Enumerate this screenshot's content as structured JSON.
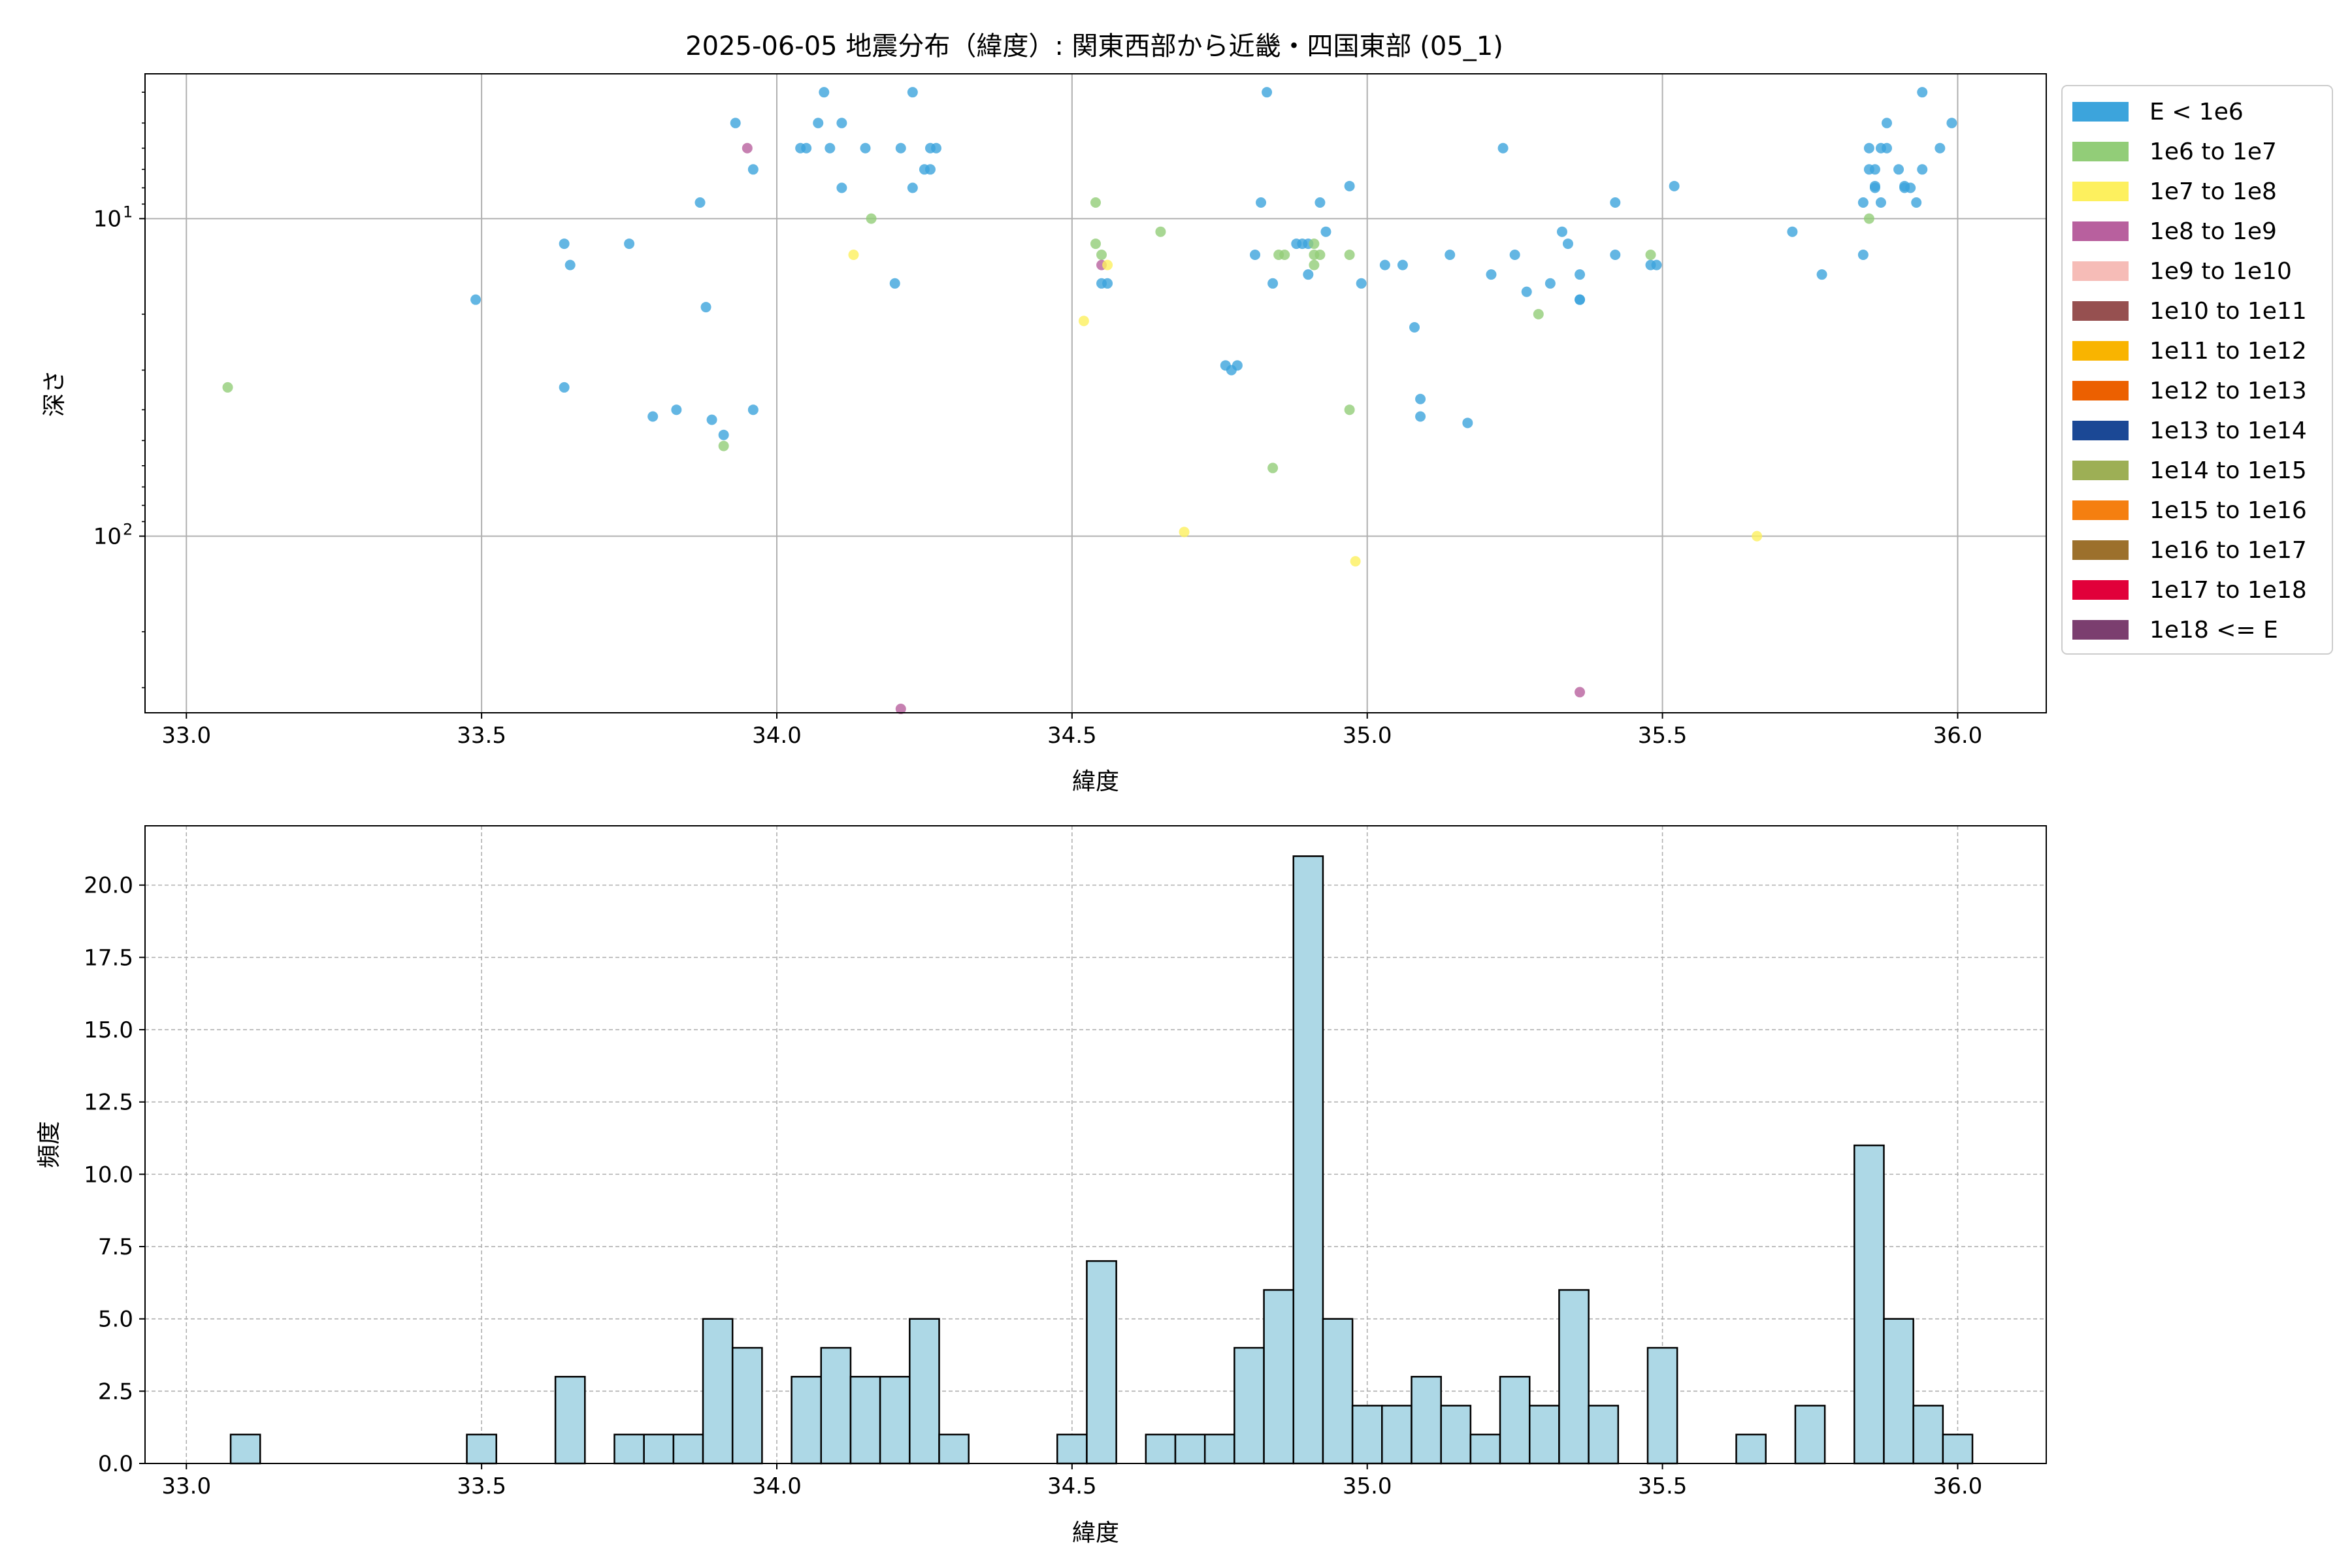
{
  "chart_data": [
    {
      "type": "scatter",
      "title": "2025-06-05 地震分布（緯度）: 関東西部から近畿・四国東部 (05_1)",
      "xlabel": "緯度",
      "ylabel": "深さ",
      "xlim": [
        32.93,
        36.15
      ],
      "ylim": [
        360,
        3.5
      ],
      "yscale": "log (inverted)",
      "xticks": [
        "33.0",
        "33.5",
        "34.0",
        "34.5",
        "35.0",
        "35.5",
        "36.0"
      ],
      "yticks": [
        {
          "value": 10,
          "label": "10",
          "exp": "1"
        },
        {
          "value": 100,
          "label": "10",
          "exp": "2"
        }
      ],
      "grid": true,
      "legend_position": "outside-right",
      "legend": [
        {
          "label": "E < 1e6",
          "color": "#3ca4dc"
        },
        {
          "label": "1e6 to 1e7",
          "color": "#92cd78"
        },
        {
          "label": "1e7 to 1e8",
          "color": "#fdf05e"
        },
        {
          "label": "1e8 to 1e9",
          "color": "#b8609e"
        },
        {
          "label": "1e9 to 1e10",
          "color": "#f6bcb7"
        },
        {
          "label": "1e10 to 1e11",
          "color": "#965050"
        },
        {
          "label": "1e11 to 1e12",
          "color": "#f9b400"
        },
        {
          "label": "1e12 to 1e13",
          "color": "#ec6000"
        },
        {
          "label": "1e13 to 1e14",
          "color": "#1b4895"
        },
        {
          "label": "1e14 to 1e15",
          "color": "#9daf55"
        },
        {
          "label": "1e15 to 1e16",
          "color": "#f57f10"
        },
        {
          "label": "1e16 to 1e17",
          "color": "#9c702c"
        },
        {
          "label": "1e17 to 1e18",
          "color": "#e1003a"
        },
        {
          "label": "1e18 <= E",
          "color": "#7b3e6f"
        }
      ],
      "points": [
        {
          "x": 33.07,
          "y": 34,
          "c": 1
        },
        {
          "x": 33.49,
          "y": 18,
          "c": 0
        },
        {
          "x": 33.64,
          "y": 34,
          "c": 0
        },
        {
          "x": 33.64,
          "y": 12,
          "c": 0
        },
        {
          "x": 33.65,
          "y": 14,
          "c": 0
        },
        {
          "x": 33.75,
          "y": 12,
          "c": 0
        },
        {
          "x": 33.79,
          "y": 42,
          "c": 0
        },
        {
          "x": 33.83,
          "y": 40,
          "c": 0
        },
        {
          "x": 33.87,
          "y": 8.9,
          "c": 0
        },
        {
          "x": 33.88,
          "y": 19,
          "c": 0
        },
        {
          "x": 33.89,
          "y": 43,
          "c": 0
        },
        {
          "x": 33.91,
          "y": 48,
          "c": 0
        },
        {
          "x": 33.91,
          "y": 52,
          "c": 1
        },
        {
          "x": 33.93,
          "y": 5.0,
          "c": 0
        },
        {
          "x": 33.95,
          "y": 6.0,
          "c": 3
        },
        {
          "x": 33.96,
          "y": 40,
          "c": 0
        },
        {
          "x": 33.96,
          "y": 7.0,
          "c": 0
        },
        {
          "x": 34.04,
          "y": 6.0,
          "c": 0
        },
        {
          "x": 34.05,
          "y": 6.0,
          "c": 0
        },
        {
          "x": 34.07,
          "y": 5.0,
          "c": 0
        },
        {
          "x": 34.08,
          "y": 4.0,
          "c": 0
        },
        {
          "x": 34.09,
          "y": 6.0,
          "c": 0
        },
        {
          "x": 34.11,
          "y": 5.0,
          "c": 0
        },
        {
          "x": 34.11,
          "y": 8.0,
          "c": 0
        },
        {
          "x": 34.13,
          "y": 13,
          "c": 2
        },
        {
          "x": 34.15,
          "y": 6.0,
          "c": 0
        },
        {
          "x": 34.16,
          "y": 10,
          "c": 1
        },
        {
          "x": 34.2,
          "y": 16,
          "c": 0
        },
        {
          "x": 34.21,
          "y": 6.0,
          "c": 0
        },
        {
          "x": 34.21,
          "y": 350,
          "c": 3
        },
        {
          "x": 34.23,
          "y": 8.0,
          "c": 0
        },
        {
          "x": 34.23,
          "y": 4.0,
          "c": 0
        },
        {
          "x": 34.25,
          "y": 7.0,
          "c": 0
        },
        {
          "x": 34.26,
          "y": 6.0,
          "c": 0
        },
        {
          "x": 34.26,
          "y": 7.0,
          "c": 0
        },
        {
          "x": 34.27,
          "y": 6.0,
          "c": 0
        },
        {
          "x": 34.52,
          "y": 21,
          "c": 2
        },
        {
          "x": 34.54,
          "y": 12,
          "c": 1
        },
        {
          "x": 34.54,
          "y": 8.9,
          "c": 1
        },
        {
          "x": 34.55,
          "y": 13,
          "c": 1
        },
        {
          "x": 34.55,
          "y": 14,
          "c": 3
        },
        {
          "x": 34.55,
          "y": 16,
          "c": 0
        },
        {
          "x": 34.56,
          "y": 14,
          "c": 2
        },
        {
          "x": 34.56,
          "y": 16,
          "c": 0
        },
        {
          "x": 34.65,
          "y": 11,
          "c": 1
        },
        {
          "x": 34.69,
          "y": 97,
          "c": 2
        },
        {
          "x": 34.76,
          "y": 29,
          "c": 0
        },
        {
          "x": 34.77,
          "y": 30,
          "c": 0
        },
        {
          "x": 34.78,
          "y": 29,
          "c": 0
        },
        {
          "x": 34.81,
          "y": 13,
          "c": 0
        },
        {
          "x": 34.82,
          "y": 8.9,
          "c": 0
        },
        {
          "x": 34.83,
          "y": 4.0,
          "c": 0
        },
        {
          "x": 34.84,
          "y": 16,
          "c": 0
        },
        {
          "x": 34.84,
          "y": 61,
          "c": 1
        },
        {
          "x": 34.85,
          "y": 13,
          "c": 1
        },
        {
          "x": 34.86,
          "y": 13,
          "c": 1
        },
        {
          "x": 34.88,
          "y": 12,
          "c": 0
        },
        {
          "x": 34.89,
          "y": 12,
          "c": 0
        },
        {
          "x": 34.9,
          "y": 12,
          "c": 0
        },
        {
          "x": 34.9,
          "y": 15,
          "c": 0
        },
        {
          "x": 34.91,
          "y": 12,
          "c": 1
        },
        {
          "x": 34.91,
          "y": 13,
          "c": 1
        },
        {
          "x": 34.91,
          "y": 14,
          "c": 1
        },
        {
          "x": 34.92,
          "y": 13,
          "c": 1
        },
        {
          "x": 34.92,
          "y": 8.9,
          "c": 0
        },
        {
          "x": 34.93,
          "y": 11,
          "c": 0
        },
        {
          "x": 34.97,
          "y": 13,
          "c": 1
        },
        {
          "x": 34.97,
          "y": 40,
          "c": 1
        },
        {
          "x": 34.97,
          "y": 7.9,
          "c": 0
        },
        {
          "x": 34.98,
          "y": 120,
          "c": 2
        },
        {
          "x": 34.99,
          "y": 16,
          "c": 0
        },
        {
          "x": 35.03,
          "y": 14,
          "c": 0
        },
        {
          "x": 35.06,
          "y": 14,
          "c": 0
        },
        {
          "x": 35.08,
          "y": 22,
          "c": 0
        },
        {
          "x": 35.09,
          "y": 37,
          "c": 0
        },
        {
          "x": 35.09,
          "y": 42,
          "c": 0
        },
        {
          "x": 35.14,
          "y": 13,
          "c": 0
        },
        {
          "x": 35.17,
          "y": 44,
          "c": 0
        },
        {
          "x": 35.21,
          "y": 15,
          "c": 0
        },
        {
          "x": 35.23,
          "y": 6.0,
          "c": 0
        },
        {
          "x": 35.25,
          "y": 13,
          "c": 0
        },
        {
          "x": 35.27,
          "y": 17,
          "c": 0
        },
        {
          "x": 35.29,
          "y": 20,
          "c": 1
        },
        {
          "x": 35.31,
          "y": 16,
          "c": 0
        },
        {
          "x": 35.33,
          "y": 11,
          "c": 0
        },
        {
          "x": 35.34,
          "y": 12,
          "c": 0
        },
        {
          "x": 35.36,
          "y": 15,
          "c": 0
        },
        {
          "x": 35.36,
          "y": 18,
          "c": 0
        },
        {
          "x": 35.36,
          "y": 18,
          "c": 0
        },
        {
          "x": 35.36,
          "y": 310,
          "c": 3
        },
        {
          "x": 35.42,
          "y": 8.9,
          "c": 0
        },
        {
          "x": 35.42,
          "y": 13,
          "c": 0
        },
        {
          "x": 35.48,
          "y": 14,
          "c": 0
        },
        {
          "x": 35.48,
          "y": 13,
          "c": 1
        },
        {
          "x": 35.49,
          "y": 14,
          "c": 0
        },
        {
          "x": 35.52,
          "y": 7.9,
          "c": 0
        },
        {
          "x": 35.66,
          "y": 100,
          "c": 2
        },
        {
          "x": 35.72,
          "y": 11,
          "c": 0
        },
        {
          "x": 35.77,
          "y": 15,
          "c": 0
        },
        {
          "x": 35.84,
          "y": 13,
          "c": 0
        },
        {
          "x": 35.84,
          "y": 8.9,
          "c": 0
        },
        {
          "x": 35.85,
          "y": 10,
          "c": 1
        },
        {
          "x": 35.85,
          "y": 6.0,
          "c": 0
        },
        {
          "x": 35.85,
          "y": 7.0,
          "c": 0
        },
        {
          "x": 35.86,
          "y": 7.0,
          "c": 0
        },
        {
          "x": 35.86,
          "y": 7.9,
          "c": 0
        },
        {
          "x": 35.86,
          "y": 8.0,
          "c": 0
        },
        {
          "x": 35.87,
          "y": 8.9,
          "c": 0
        },
        {
          "x": 35.87,
          "y": 6.0,
          "c": 0
        },
        {
          "x": 35.88,
          "y": 5.0,
          "c": 0
        },
        {
          "x": 35.88,
          "y": 6.0,
          "c": 0
        },
        {
          "x": 35.9,
          "y": 7.0,
          "c": 0
        },
        {
          "x": 35.91,
          "y": 7.9,
          "c": 0
        },
        {
          "x": 35.91,
          "y": 8.0,
          "c": 0
        },
        {
          "x": 35.92,
          "y": 8.0,
          "c": 0
        },
        {
          "x": 35.93,
          "y": 8.9,
          "c": 0
        },
        {
          "x": 35.94,
          "y": 4.0,
          "c": 0
        },
        {
          "x": 35.94,
          "y": 7.0,
          "c": 0
        },
        {
          "x": 35.97,
          "y": 6.0,
          "c": 0
        },
        {
          "x": 35.99,
          "y": 5.0,
          "c": 0
        }
      ]
    },
    {
      "type": "bar",
      "title": "",
      "xlabel": "緯度",
      "ylabel": "頻度",
      "xlim": [
        32.93,
        36.15
      ],
      "ylim": [
        0,
        22.05
      ],
      "xticks": [
        "33.0",
        "33.5",
        "34.0",
        "34.5",
        "35.0",
        "35.5",
        "36.0"
      ],
      "yticks": [
        "0.0",
        "2.5",
        "5.0",
        "7.5",
        "10.0",
        "12.5",
        "15.0",
        "17.5",
        "20.0"
      ],
      "grid": "dashed",
      "bar_color": "#add8e6",
      "bin_width": 0.05,
      "bins": [
        {
          "start": 33.075,
          "count": 1
        },
        {
          "start": 33.475,
          "count": 1
        },
        {
          "start": 33.625,
          "count": 3
        },
        {
          "start": 33.725,
          "count": 1
        },
        {
          "start": 33.775,
          "count": 1
        },
        {
          "start": 33.825,
          "count": 1
        },
        {
          "start": 33.875,
          "count": 5
        },
        {
          "start": 33.925,
          "count": 4
        },
        {
          "start": 34.025,
          "count": 3
        },
        {
          "start": 34.075,
          "count": 4
        },
        {
          "start": 34.125,
          "count": 3
        },
        {
          "start": 34.175,
          "count": 3
        },
        {
          "start": 34.225,
          "count": 5
        },
        {
          "start": 34.275,
          "count": 1
        },
        {
          "start": 34.475,
          "count": 1
        },
        {
          "start": 34.525,
          "count": 7
        },
        {
          "start": 34.625,
          "count": 1
        },
        {
          "start": 34.675,
          "count": 1
        },
        {
          "start": 34.725,
          "count": 1
        },
        {
          "start": 34.775,
          "count": 4
        },
        {
          "start": 34.825,
          "count": 6
        },
        {
          "start": 34.875,
          "count": 21
        },
        {
          "start": 34.925,
          "count": 5
        },
        {
          "start": 34.975,
          "count": 2
        },
        {
          "start": 35.025,
          "count": 2
        },
        {
          "start": 35.075,
          "count": 3
        },
        {
          "start": 35.125,
          "count": 2
        },
        {
          "start": 35.175,
          "count": 1
        },
        {
          "start": 35.225,
          "count": 3
        },
        {
          "start": 35.275,
          "count": 2
        },
        {
          "start": 35.325,
          "count": 6
        },
        {
          "start": 35.375,
          "count": 2
        },
        {
          "start": 35.475,
          "count": 4
        },
        {
          "start": 35.625,
          "count": 1
        },
        {
          "start": 35.725,
          "count": 2
        },
        {
          "start": 35.825,
          "count": 11
        },
        {
          "start": 35.875,
          "count": 5
        },
        {
          "start": 35.925,
          "count": 2
        },
        {
          "start": 35.975,
          "count": 1
        }
      ]
    }
  ]
}
